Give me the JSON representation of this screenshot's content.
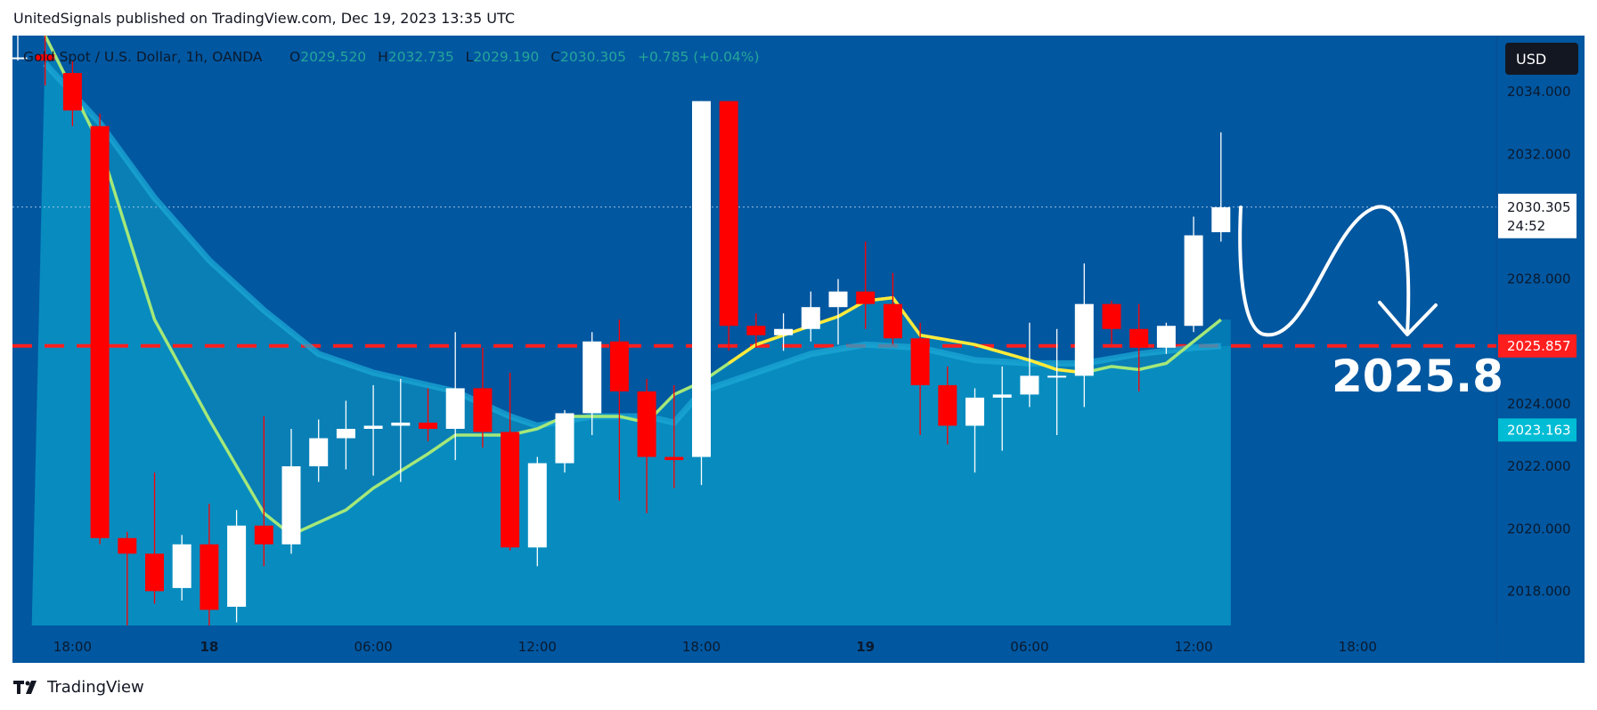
{
  "header": {
    "publisher": "UnitedSignals published on TradingView.com, Dec 19, 2023 13:35 UTC"
  },
  "legend": {
    "symbol": "Gold Spot / U.S. Dollar, 1h, OANDA",
    "open_label": "O",
    "open": "2029.520",
    "high_label": "H",
    "high": "2032.735",
    "low_label": "L",
    "low": "2029.190",
    "close_label": "C",
    "close": "2030.305",
    "change": "+0.785 (+0.04%)"
  },
  "currency_button": "USD",
  "price_labels": {
    "last_price": "2030.305",
    "countdown": "24:52",
    "level_price": "2025.857",
    "ema_price": "2023.163"
  },
  "annotation": {
    "target_text": "2025.8"
  },
  "footer": {
    "brand": "TradingView"
  },
  "colors": {
    "background": "#0157a0",
    "up_candle": "#ffffff",
    "down_candle": "#ff0000",
    "slow_line": "#a5e879",
    "fast_line": "#ffea3a",
    "level_line": "#ff1e1e",
    "ema_label": "#00bcd4"
  },
  "chart_data": {
    "type": "candlestick",
    "title": "Gold Spot / U.S. Dollar, 1h, OANDA",
    "interval": "1h",
    "y_ticks": [
      2018,
      2020,
      2022,
      2024,
      2028,
      2032,
      2034
    ],
    "y_tick_labels": [
      "2018.000",
      "2020.000",
      "2022.000",
      "2024.000",
      "2028.000",
      "2032.000",
      "2034.000"
    ],
    "ylim": [
      2016.9,
      2035.8
    ],
    "x_ticks": [
      {
        "label": "18:00",
        "bar": 2
      },
      {
        "label": "18",
        "bar": 7,
        "bold": true
      },
      {
        "label": "06:00",
        "bar": 13
      },
      {
        "label": "12:00",
        "bar": 19
      },
      {
        "label": "18:00",
        "bar": 25
      },
      {
        "label": "19",
        "bar": 31,
        "bold": true
      },
      {
        "label": "06:00",
        "bar": 37
      },
      {
        "label": "12:00",
        "bar": 43
      },
      {
        "label": "18:00",
        "bar": 49
      }
    ],
    "future_bars": 10,
    "horizontal_levels": [
      {
        "name": "target-level",
        "value": 2025.857,
        "style": "dashed"
      },
      {
        "name": "last-price",
        "value": 2030.305,
        "style": "dotted"
      }
    ],
    "candles": [
      {
        "o": 2035.1,
        "h": 2035.9,
        "l": 2035.0,
        "c": 2035.1
      },
      {
        "o": 2035.2,
        "h": 2035.9,
        "l": 2034.2,
        "c": 2035.0
      },
      {
        "o": 2034.6,
        "h": 2035.0,
        "l": 2032.9,
        "c": 2033.4
      },
      {
        "o": 2032.9,
        "h": 2033.3,
        "l": 2019.5,
        "c": 2019.7
      },
      {
        "o": 2019.7,
        "h": 2019.9,
        "l": 2016.9,
        "c": 2019.2
      },
      {
        "o": 2019.2,
        "h": 2021.8,
        "l": 2017.6,
        "c": 2018.0
      },
      {
        "o": 2018.1,
        "h": 2019.8,
        "l": 2017.7,
        "c": 2019.5
      },
      {
        "o": 2019.5,
        "h": 2020.8,
        "l": 2016.9,
        "c": 2017.4
      },
      {
        "o": 2017.5,
        "h": 2020.6,
        "l": 2017.0,
        "c": 2020.1
      },
      {
        "o": 2020.1,
        "h": 2023.6,
        "l": 2018.8,
        "c": 2019.5
      },
      {
        "o": 2019.5,
        "h": 2023.2,
        "l": 2019.2,
        "c": 2022.0
      },
      {
        "o": 2022.0,
        "h": 2023.5,
        "l": 2021.5,
        "c": 2022.9
      },
      {
        "o": 2022.9,
        "h": 2024.1,
        "l": 2021.9,
        "c": 2023.2
      },
      {
        "o": 2023.2,
        "h": 2024.6,
        "l": 2021.7,
        "c": 2023.3
      },
      {
        "o": 2023.3,
        "h": 2024.8,
        "l": 2021.5,
        "c": 2023.4
      },
      {
        "o": 2023.4,
        "h": 2024.5,
        "l": 2022.8,
        "c": 2023.2
      },
      {
        "o": 2023.2,
        "h": 2026.3,
        "l": 2022.2,
        "c": 2024.5
      },
      {
        "o": 2024.5,
        "h": 2025.8,
        "l": 2022.6,
        "c": 2023.1
      },
      {
        "o": 2023.1,
        "h": 2025.0,
        "l": 2019.3,
        "c": 2019.4
      },
      {
        "o": 2019.4,
        "h": 2022.3,
        "l": 2018.8,
        "c": 2022.1
      },
      {
        "o": 2022.1,
        "h": 2023.8,
        "l": 2021.8,
        "c": 2023.7
      },
      {
        "o": 2023.7,
        "h": 2026.3,
        "l": 2023.0,
        "c": 2026.0
      },
      {
        "o": 2026.0,
        "h": 2026.7,
        "l": 2020.9,
        "c": 2024.4
      },
      {
        "o": 2024.4,
        "h": 2024.8,
        "l": 2020.5,
        "c": 2022.3
      },
      {
        "o": 2022.3,
        "h": 2024.6,
        "l": 2021.3,
        "c": 2022.2
      },
      {
        "o": 2022.3,
        "h": 2033.7,
        "l": 2021.4,
        "c": 2033.7
      },
      {
        "o": 2033.7,
        "h": 2033.7,
        "l": 2025.7,
        "c": 2026.5
      },
      {
        "o": 2026.5,
        "h": 2026.9,
        "l": 2025.8,
        "c": 2026.2
      },
      {
        "o": 2026.2,
        "h": 2026.9,
        "l": 2025.7,
        "c": 2026.4
      },
      {
        "o": 2026.4,
        "h": 2027.6,
        "l": 2026.0,
        "c": 2027.1
      },
      {
        "o": 2027.1,
        "h": 2028.0,
        "l": 2025.9,
        "c": 2027.6
      },
      {
        "o": 2027.6,
        "h": 2029.2,
        "l": 2026.4,
        "c": 2027.2
      },
      {
        "o": 2027.2,
        "h": 2028.2,
        "l": 2025.9,
        "c": 2026.1
      },
      {
        "o": 2026.1,
        "h": 2026.6,
        "l": 2023.0,
        "c": 2024.6
      },
      {
        "o": 2024.6,
        "h": 2025.2,
        "l": 2022.7,
        "c": 2023.3
      },
      {
        "o": 2023.3,
        "h": 2024.5,
        "l": 2021.8,
        "c": 2024.2
      },
      {
        "o": 2024.2,
        "h": 2025.2,
        "l": 2022.5,
        "c": 2024.3
      },
      {
        "o": 2024.3,
        "h": 2026.6,
        "l": 2023.9,
        "c": 2024.9
      },
      {
        "o": 2024.9,
        "h": 2026.4,
        "l": 2023.0,
        "c": 2024.9
      },
      {
        "o": 2024.9,
        "h": 2028.5,
        "l": 2023.9,
        "c": 2027.2
      },
      {
        "o": 2027.2,
        "h": 2027.3,
        "l": 2025.9,
        "c": 2026.4
      },
      {
        "o": 2026.4,
        "h": 2027.2,
        "l": 2024.4,
        "c": 2025.8
      },
      {
        "o": 2025.8,
        "h": 2026.6,
        "l": 2025.6,
        "c": 2026.5
      },
      {
        "o": 2026.5,
        "h": 2030.0,
        "l": 2026.3,
        "c": 2029.4
      },
      {
        "o": 2029.5,
        "h": 2032.7,
        "l": 2029.2,
        "c": 2030.3
      }
    ],
    "slow_ma": [
      {
        "bar": 1,
        "v": 2034.9
      },
      {
        "bar": 3,
        "v": 2033.0
      },
      {
        "bar": 5,
        "v": 2030.6
      },
      {
        "bar": 7,
        "v": 2028.6
      },
      {
        "bar": 9,
        "v": 2027.0
      },
      {
        "bar": 11,
        "v": 2025.6
      },
      {
        "bar": 13,
        "v": 2025.0
      },
      {
        "bar": 15,
        "v": 2024.6
      },
      {
        "bar": 16,
        "v": 2024.4
      },
      {
        "bar": 18,
        "v": 2023.6
      },
      {
        "bar": 19,
        "v": 2023.3
      },
      {
        "bar": 21,
        "v": 2023.6
      },
      {
        "bar": 23,
        "v": 2023.6
      },
      {
        "bar": 24,
        "v": 2023.4
      },
      {
        "bar": 25,
        "v": 2024.4
      },
      {
        "bar": 27,
        "v": 2025.0
      },
      {
        "bar": 29,
        "v": 2025.6
      },
      {
        "bar": 31,
        "v": 2025.9
      },
      {
        "bar": 33,
        "v": 2025.8
      },
      {
        "bar": 35,
        "v": 2025.4
      },
      {
        "bar": 37,
        "v": 2025.3
      },
      {
        "bar": 39,
        "v": 2025.3
      },
      {
        "bar": 41,
        "v": 2025.6
      },
      {
        "bar": 43,
        "v": 2025.8
      },
      {
        "bar": 44,
        "v": 2025.85
      }
    ],
    "fast_ma": [
      {
        "bar": 1,
        "v": 2036.7
      },
      {
        "bar": 3,
        "v": 2032.3
      },
      {
        "bar": 5,
        "v": 2026.7
      },
      {
        "bar": 7,
        "v": 2023.5
      },
      {
        "bar": 9,
        "v": 2020.5
      },
      {
        "bar": 10,
        "v": 2019.8
      },
      {
        "bar": 12,
        "v": 2020.6
      },
      {
        "bar": 13,
        "v": 2021.3
      },
      {
        "bar": 15,
        "v": 2022.4
      },
      {
        "bar": 16,
        "v": 2023.0
      },
      {
        "bar": 18,
        "v": 2023.0
      },
      {
        "bar": 19,
        "v": 2023.2
      },
      {
        "bar": 20,
        "v": 2023.6
      },
      {
        "bar": 22,
        "v": 2023.6
      },
      {
        "bar": 23,
        "v": 2023.4
      },
      {
        "bar": 24,
        "v": 2024.3
      },
      {
        "bar": 25,
        "v": 2024.7
      },
      {
        "bar": 26,
        "v": 2025.3
      },
      {
        "bar": 27,
        "v": 2025.9
      },
      {
        "bar": 29,
        "v": 2026.5
      },
      {
        "bar": 30,
        "v": 2026.8
      },
      {
        "bar": 31,
        "v": 2027.3
      },
      {
        "bar": 32,
        "v": 2027.4
      },
      {
        "bar": 33,
        "v": 2026.2
      },
      {
        "bar": 35,
        "v": 2025.9
      },
      {
        "bar": 37,
        "v": 2025.4
      },
      {
        "bar": 38,
        "v": 2025.1
      },
      {
        "bar": 39,
        "v": 2025.0
      },
      {
        "bar": 40,
        "v": 2025.2
      },
      {
        "bar": 41,
        "v": 2025.1
      },
      {
        "bar": 42,
        "v": 2025.3
      },
      {
        "bar": 43,
        "v": 2026.0
      },
      {
        "bar": 44,
        "v": 2026.7
      }
    ]
  }
}
